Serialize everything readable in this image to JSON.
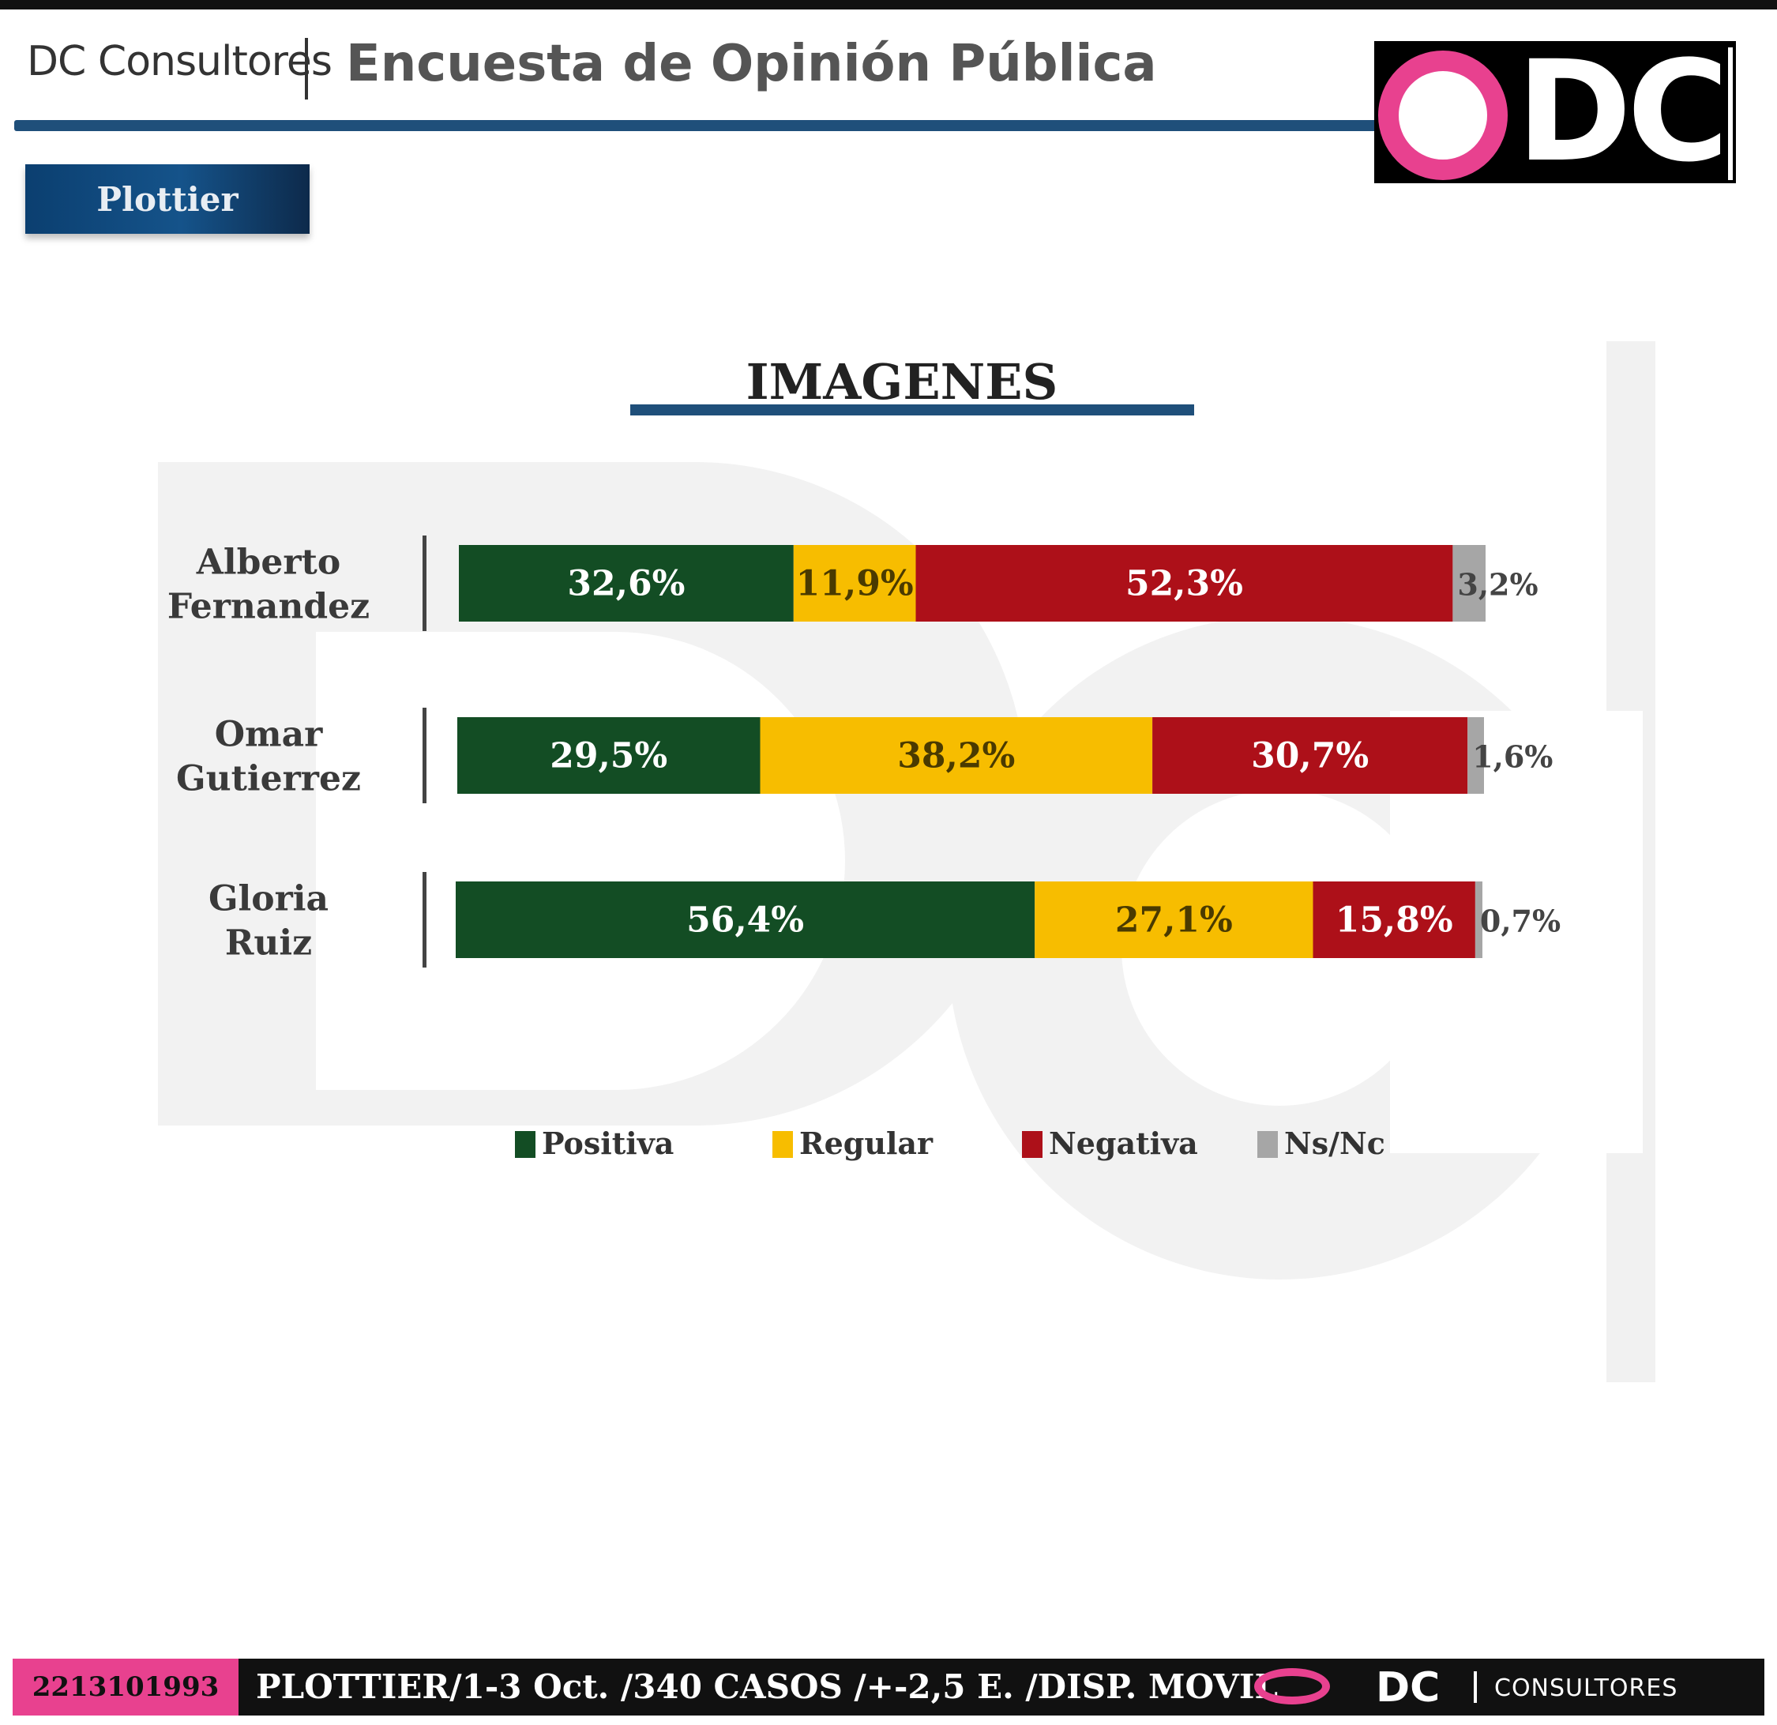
{
  "header": {
    "brand": "DC Consultores",
    "survey_title": "Encuesta de Opinión Pública",
    "location_badge": "Plottier",
    "logo_text": "DC"
  },
  "colors": {
    "positiva": "#134d24",
    "regular": "#f7bd00",
    "negativa": "#ad1019",
    "nsnc": "#a6a6a6",
    "accent_pink": "#e8418f",
    "header_blue": "#1f4f7a"
  },
  "chart_data": {
    "type": "bar",
    "orientation": "horizontal",
    "stacked": true,
    "title": "IMAGENES",
    "categories": [
      [
        "Alberto",
        "Fernandez"
      ],
      [
        "Omar",
        "Gutierrez"
      ],
      [
        "Gloria",
        "Ruiz"
      ]
    ],
    "series": [
      {
        "name": "Positiva",
        "values": [
          32.6,
          29.5,
          56.4
        ],
        "labels": [
          "32,6%",
          "29,5%",
          "56,4%"
        ]
      },
      {
        "name": "Regular",
        "values": [
          11.9,
          38.2,
          27.1
        ],
        "labels": [
          "11,9%",
          "38,2%",
          "27,1%"
        ]
      },
      {
        "name": "Negativa",
        "values": [
          52.3,
          30.7,
          15.8
        ],
        "labels": [
          "52,3%",
          "30,7%",
          "15,8%"
        ]
      },
      {
        "name": "Ns/Nc",
        "values": [
          3.2,
          1.6,
          0.7
        ],
        "labels": [
          "3,2%",
          "1,6%",
          "0,7%"
        ]
      }
    ],
    "xlim": [
      0,
      100
    ],
    "grid": false,
    "legend_position": "bottom"
  },
  "footer": {
    "phone": "2213101993",
    "info": "PLOTTIER/1-3 Oct. /340 CASOS /+-2,5 E. /DISP. MOVIL",
    "brand_dc": "DC",
    "brand_consultores": "CONSULTORES"
  }
}
